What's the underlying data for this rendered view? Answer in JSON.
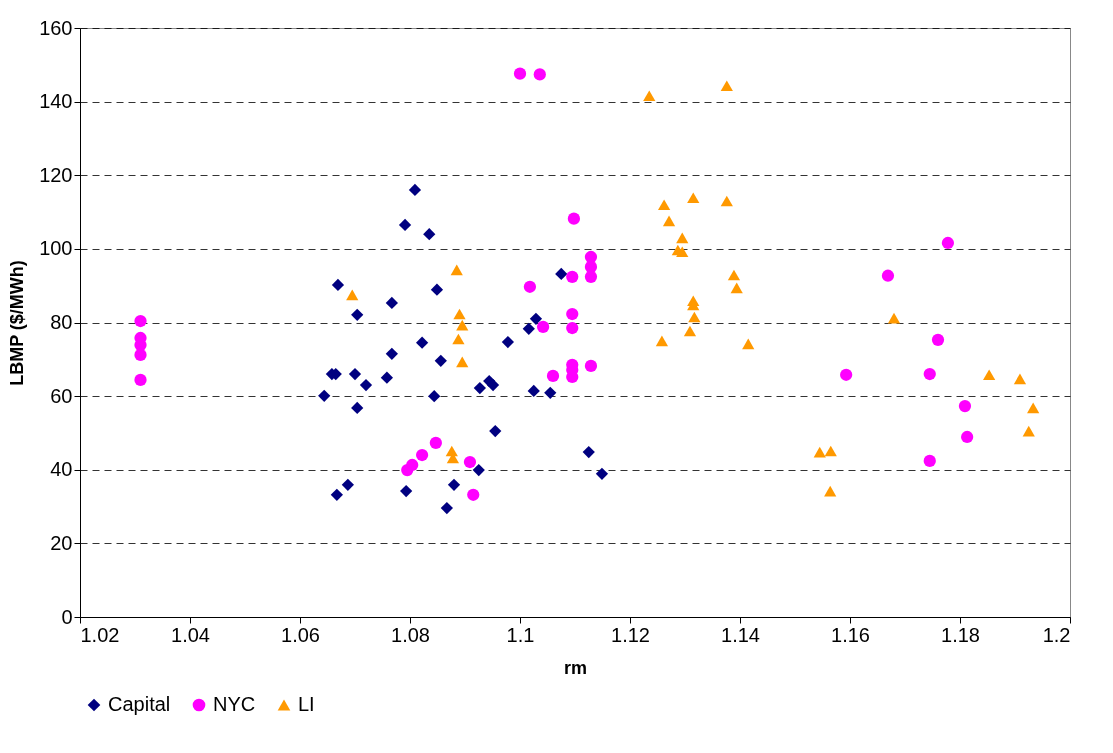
{
  "chart_data": {
    "type": "scatter",
    "xlabel": "rm",
    "ylabel": "LBMP ($/MWh)",
    "xlim": [
      1.02,
      1.2
    ],
    "xticks": [
      1.02,
      1.04,
      1.06,
      1.08,
      1.1,
      1.12,
      1.14,
      1.16,
      1.18,
      1.2
    ],
    "ylim": [
      0,
      160
    ],
    "yticks": [
      0,
      20,
      40,
      60,
      80,
      100,
      120,
      140,
      160
    ],
    "grid": "y",
    "legend": "bottom",
    "series": [
      {
        "name": "Capital",
        "color": "#000080",
        "marker": "diamond",
        "x": [
          1.0644,
          1.0658,
          1.0665,
          1.0669,
          1.0667,
          1.0687,
          1.07,
          1.0704,
          1.0704,
          1.072,
          1.0758,
          1.0767,
          1.0767,
          1.0791,
          1.0809,
          1.0835,
          1.0849,
          1.0822,
          1.0856,
          1.0844,
          1.0793,
          1.0867,
          1.088,
          1.0925,
          1.0927,
          1.0944,
          1.0951,
          1.0955,
          1.0978,
          1.1016,
          1.1029,
          1.1025,
          1.1055,
          1.1075,
          1.1125,
          1.1149
        ],
        "values": [
          60.1,
          66,
          66,
          90.2,
          33.2,
          35.9,
          66,
          82.1,
          56.8,
          63,
          65,
          71.5,
          85.3,
          106.5,
          116,
          104,
          88.9,
          74.5,
          69.6,
          60,
          34.2,
          29.6,
          35.9,
          39.9,
          62.2,
          64.1,
          63,
          50.5,
          74.7,
          78.3,
          81,
          61.4,
          60.9,
          93.2,
          44.8,
          38.9
        ]
      },
      {
        "name": "NYC",
        "color": "#ff00ff",
        "marker": "circle",
        "x": [
          1.031,
          1.031,
          1.031,
          1.031,
          1.031,
          1.0795,
          1.0804,
          1.0822,
          1.0847,
          1.0909,
          1.0915,
          1.1,
          1.1036,
          1.1018,
          1.1042,
          1.106,
          1.1095,
          1.1098,
          1.1095,
          1.1095,
          1.1095,
          1.1095,
          1.1095,
          1.1129,
          1.1129,
          1.1129,
          1.1129,
          1.1593,
          1.1669,
          1.1745,
          1.1745,
          1.176,
          1.1778,
          1.1809,
          1.1813
        ],
        "values": [
          80.4,
          75.8,
          73.9,
          71.2,
          64.4,
          39.9,
          41.3,
          44,
          47.3,
          42.1,
          33.2,
          147.6,
          147.4,
          89.7,
          78.8,
          65.5,
          92.4,
          108.2,
          82.3,
          78.5,
          68.5,
          67.1,
          65.2,
          97.8,
          95.1,
          92.4,
          68.2,
          65.8,
          92.7,
          66,
          42.4,
          75.3,
          101.6,
          57.3,
          48.9
        ]
      },
      {
        "name": "LI",
        "color": "#ff9900",
        "marker": "triangle",
        "x": [
          1.0695,
          1.0876,
          1.0878,
          1.0885,
          1.089,
          1.0888,
          1.0895,
          1.0895,
          1.1235,
          1.1258,
          1.1262,
          1.1271,
          1.1287,
          1.1295,
          1.1295,
          1.1309,
          1.1315,
          1.1315,
          1.1315,
          1.1317,
          1.1376,
          1.1376,
          1.1389,
          1.1394,
          1.1415,
          1.1545,
          1.1564,
          1.1565,
          1.168,
          1.1853,
          1.1909,
          1.1925,
          1.1933
        ],
        "values": [
          87.5,
          45.1,
          43.2,
          94.3,
          82.3,
          75.5,
          79.3,
          69.3,
          141.6,
          75,
          112,
          107.6,
          99.7,
          103,
          99.2,
          77.7,
          113.9,
          85.9,
          84.8,
          81.5,
          144.3,
          113,
          92.9,
          89.4,
          74.2,
          44.8,
          34.2,
          45.1,
          81.2,
          65.8,
          64.7,
          50.5,
          56.8
        ]
      }
    ]
  }
}
